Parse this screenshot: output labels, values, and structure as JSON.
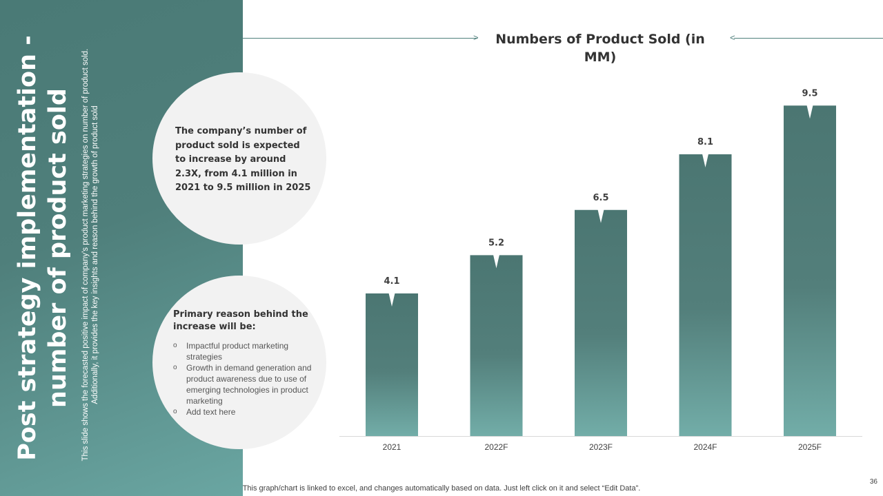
{
  "slide": {
    "title": "Post strategy implementation - number of product sold",
    "subtitle": "This slide shows the forecasted positive impact of company’s product marketing strategies on number of product sold. Additionally, it provides the key insights and reason behind the growth of product sold",
    "insight": "The company’s number of product sold is expected to increase by around 2.3X, from 4.1 million in 2021 to 9.5 million in 2025",
    "reasons_title": "Primary reason behind the increase will be:",
    "reasons": [
      "Impactful product marketing strategies",
      "Growth in demand generation and product awareness due to use of emerging technologies in product marketing",
      "Add text here"
    ],
    "footnote": "This graph/chart is linked to excel, and changes automatically based on data. Just left click on it and select “Edit Data”.",
    "slide_number": "36"
  },
  "colors": {
    "panel": "#4f7f7b",
    "bar_top": "#4b7672",
    "bar_bottom": "#72ada8",
    "circle": "#f2f2f2"
  },
  "chart_data": {
    "type": "bar",
    "title": "Numbers of Product Sold (in MM)",
    "categories": [
      "2021",
      "2022F",
      "2023F",
      "2024F",
      "2025F"
    ],
    "values": [
      4.1,
      5.2,
      6.5,
      8.1,
      9.5
    ],
    "data_labels": [
      "4.1",
      "5.2",
      "6.5",
      "8.1",
      "9.5"
    ],
    "ylim": [
      0,
      10
    ],
    "xlabel": "",
    "ylabel": "",
    "grid": false,
    "legend": "none"
  }
}
